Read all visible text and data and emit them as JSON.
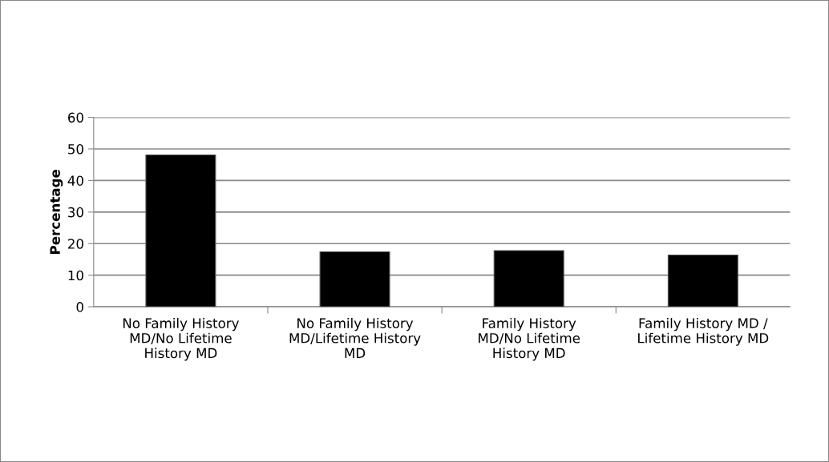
{
  "chart_data": {
    "type": "bar",
    "ylabel": "Percentage",
    "categories": [
      "No Family History\nMD/No Lifetime\nHistory MD",
      "No Family History\nMD/Lifetime History\nMD",
      "Family History\nMD/No Lifetime\nHistory MD",
      "Family History MD /\nLifetime History MD"
    ],
    "values": [
      48.1,
      17.4,
      17.8,
      16.4
    ],
    "color": "#000000",
    "ylim": [
      0,
      60
    ],
    "yticks": [
      0,
      10,
      20,
      30,
      40,
      50,
      60
    ],
    "grid": "y"
  }
}
